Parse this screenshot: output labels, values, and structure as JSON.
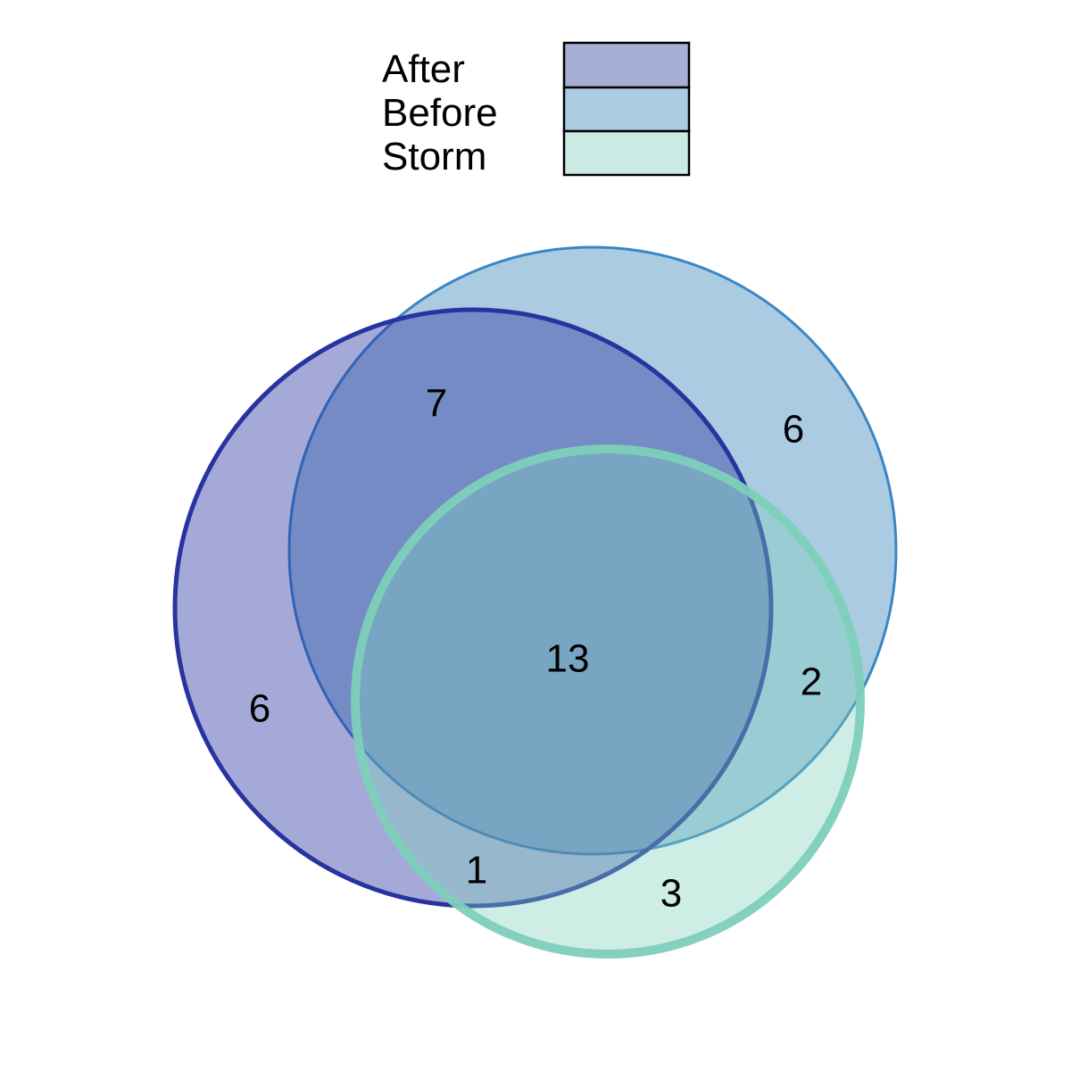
{
  "chart_data": {
    "type": "venn",
    "sets": [
      {
        "name": "After",
        "color": "#2833a0",
        "fill": "#a6aed6"
      },
      {
        "name": "Before",
        "color": "#3a86c4",
        "fill": "#abcbe2"
      },
      {
        "name": "Storm",
        "color": "#7dcfba",
        "fill": "#cceae4"
      }
    ],
    "legend": {
      "entries": [
        "After",
        "Before",
        "Storm"
      ],
      "placement": "top-center"
    },
    "regions": [
      {
        "id": "after_only",
        "sets": [
          "After"
        ],
        "value": 6
      },
      {
        "id": "before_only",
        "sets": [
          "Before"
        ],
        "value": 6
      },
      {
        "id": "storm_only",
        "sets": [
          "Storm"
        ],
        "value": 3
      },
      {
        "id": "after_before",
        "sets": [
          "After",
          "Before"
        ],
        "value": 7
      },
      {
        "id": "before_storm",
        "sets": [
          "Before",
          "Storm"
        ],
        "value": 2
      },
      {
        "id": "after_storm",
        "sets": [
          "After",
          "Storm"
        ],
        "value": 1
      },
      {
        "id": "after_before_storm",
        "sets": [
          "After",
          "Before",
          "Storm"
        ],
        "value": 13
      }
    ]
  }
}
